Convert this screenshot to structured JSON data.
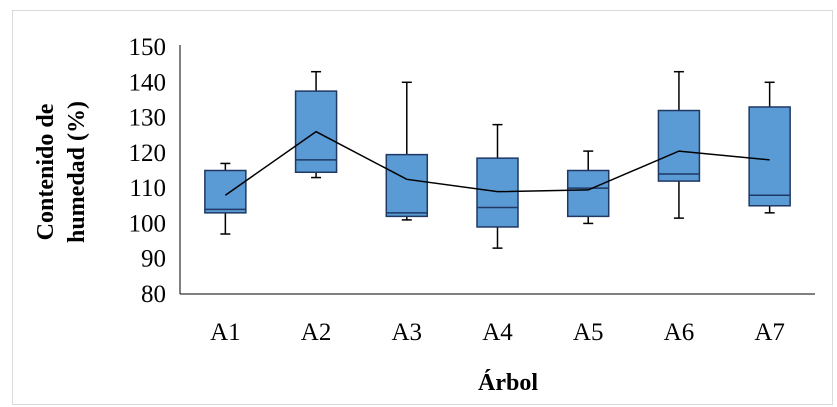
{
  "chart_data": {
    "type": "box",
    "title": "",
    "xlabel": "Árbol",
    "ylabel_lines": [
      "Contenido de",
      "humedad (%)"
    ],
    "ylim": [
      80,
      150
    ],
    "yticks": [
      80,
      90,
      100,
      110,
      120,
      130,
      140,
      150
    ],
    "grid": false,
    "categories": [
      "A1",
      "A2",
      "A3",
      "A4",
      "A5",
      "A6",
      "A7"
    ],
    "boxes": [
      {
        "category": "A1",
        "min": 97,
        "q1": 103,
        "median": 104,
        "q3": 115,
        "max": 117,
        "mean": 108
      },
      {
        "category": "A2",
        "min": 113,
        "q1": 114.5,
        "median": 118,
        "q3": 137.5,
        "max": 143,
        "mean": 126
      },
      {
        "category": "A3",
        "min": 101,
        "q1": 102,
        "median": 103,
        "q3": 119.5,
        "max": 140,
        "mean": 112.5
      },
      {
        "category": "A4",
        "min": 93,
        "q1": 99,
        "median": 104.5,
        "q3": 118.5,
        "max": 128,
        "mean": 109
      },
      {
        "category": "A5",
        "min": 100,
        "q1": 102,
        "median": 110,
        "q3": 115,
        "max": 120.5,
        "mean": 109.5
      },
      {
        "category": "A6",
        "min": 101.5,
        "q1": 112,
        "median": 114,
        "q3": 132,
        "max": 143,
        "mean": 120.5
      },
      {
        "category": "A7",
        "min": 103,
        "q1": 105,
        "median": 108,
        "q3": 133,
        "max": 140,
        "mean": 118
      }
    ],
    "mean_line": true,
    "colors": {
      "box_fill": "#5b9bd5",
      "box_stroke": "#1f3864",
      "line": "#000000",
      "axis": "#000000"
    }
  }
}
